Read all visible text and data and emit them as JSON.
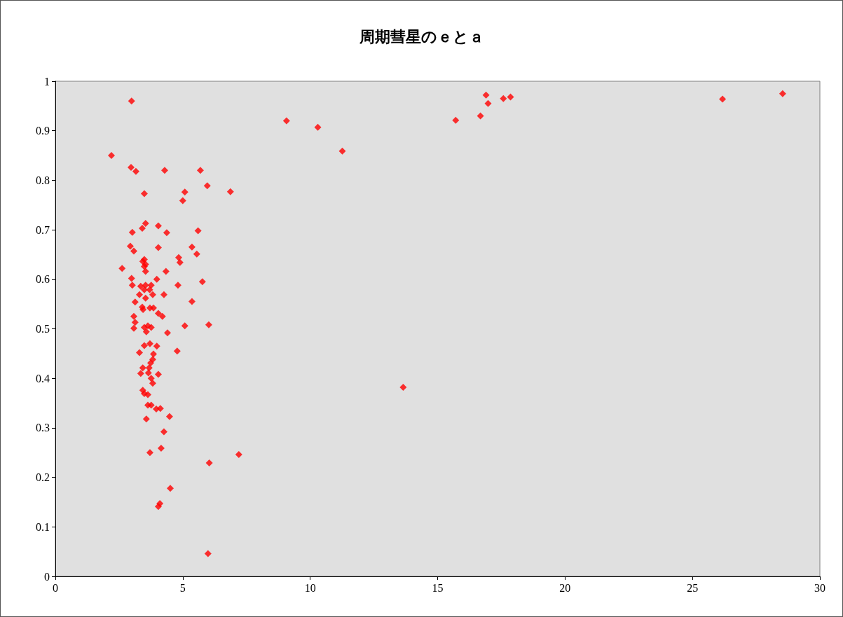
{
  "chart_data": {
    "type": "scatter",
    "title": "周期彗星のｅとａ",
    "marker": "diamond",
    "grid": false,
    "series": [
      {
        "color": "#ff0000",
        "x": [
          2.99,
          2.2,
          2.97,
          3.16,
          4.29,
          5.69,
          3.49,
          5.08,
          5.0,
          5.96,
          6.87,
          9.07,
          10.3,
          11.26,
          13.65,
          15.71,
          16.68,
          16.9,
          16.98,
          17.58,
          17.86,
          26.18,
          28.54,
          7.2,
          6.04,
          5.99,
          4.51,
          4.1,
          4.04,
          3.71,
          4.15,
          4.26,
          4.48,
          3.57,
          4.12,
          3.96,
          3.63,
          3.76,
          2.62,
          4.34,
          4.84,
          5.77,
          2.99,
          3.02,
          3.98,
          3.35,
          3.54,
          3.76,
          4.81,
          3.49,
          3.7,
          3.3,
          3.82,
          4.26,
          3.54,
          5.36,
          3.13,
          3.41,
          3.44,
          3.71,
          3.85,
          4.04,
          4.2,
          3.08,
          3.13,
          3.08,
          5.08,
          6.02,
          3.49,
          3.63,
          3.76,
          3.57,
          4.4,
          3.71,
          3.49,
          3.98,
          4.78,
          3.3,
          3.85,
          3.82,
          3.74,
          3.43,
          3.68,
          3.35,
          3.65,
          4.04,
          3.76,
          3.82,
          3.43,
          3.49,
          3.63,
          3.54,
          3.41,
          4.04,
          3.02,
          4.37,
          5.6,
          2.94,
          3.08,
          4.04,
          5.36,
          5.55,
          4.89,
          3.49,
          3.54,
          3.43,
          3.49,
          3.54
        ],
        "values": [
          0.96,
          0.85,
          0.826,
          0.818,
          0.82,
          0.82,
          0.773,
          0.776,
          0.759,
          0.789,
          0.777,
          0.92,
          0.907,
          0.859,
          0.382,
          0.921,
          0.93,
          0.972,
          0.955,
          0.965,
          0.968,
          0.964,
          0.975,
          0.246,
          0.229,
          0.046,
          0.178,
          0.147,
          0.141,
          0.25,
          0.259,
          0.292,
          0.323,
          0.318,
          0.339,
          0.338,
          0.346,
          0.346,
          0.622,
          0.616,
          0.644,
          0.595,
          0.602,
          0.588,
          0.6,
          0.586,
          0.588,
          0.588,
          0.588,
          0.579,
          0.579,
          0.569,
          0.569,
          0.569,
          0.562,
          0.555,
          0.554,
          0.544,
          0.539,
          0.542,
          0.542,
          0.531,
          0.525,
          0.525,
          0.513,
          0.501,
          0.506,
          0.508,
          0.503,
          0.506,
          0.503,
          0.494,
          0.492,
          0.47,
          0.466,
          0.465,
          0.455,
          0.452,
          0.449,
          0.438,
          0.431,
          0.421,
          0.421,
          0.41,
          0.411,
          0.408,
          0.4,
          0.39,
          0.376,
          0.369,
          0.367,
          0.713,
          0.703,
          0.708,
          0.695,
          0.694,
          0.698,
          0.667,
          0.657,
          0.664,
          0.665,
          0.651,
          0.634,
          0.64,
          0.63,
          0.636,
          0.626,
          0.616
        ]
      }
    ],
    "xlim": [
      0,
      30
    ],
    "xticks": [
      0,
      5,
      10,
      15,
      20,
      25,
      30
    ],
    "ylim": [
      0,
      1
    ],
    "yticks": [
      0,
      0.1,
      0.2,
      0.3,
      0.4,
      0.5,
      0.6,
      0.7,
      0.8,
      0.9,
      1
    ]
  }
}
